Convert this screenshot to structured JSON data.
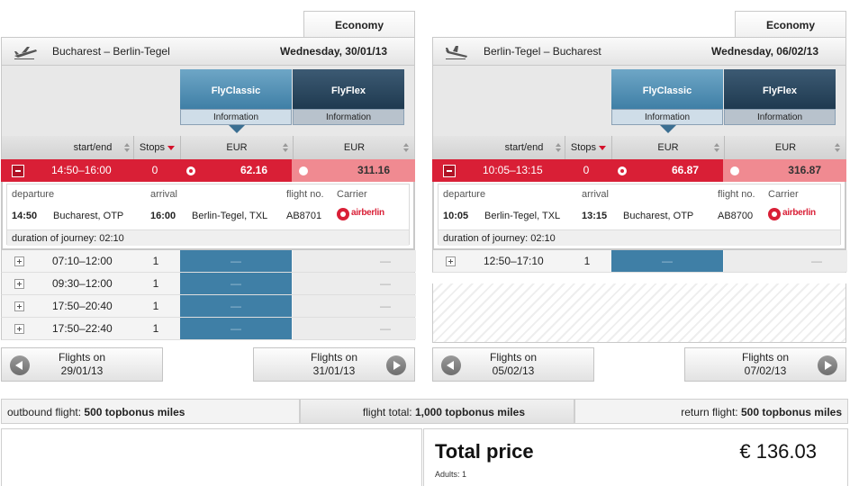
{
  "colors": {
    "accent_red": "#d91f36",
    "classic_blue": "#3f7fa6",
    "flex_navy": "#1f3a50",
    "flex_pink": "#f08a91"
  },
  "outbound": {
    "class_tab": "Economy",
    "route": "Bucharest – Berlin-Tegel",
    "date": "Wednesday, 30/01/13",
    "fares": {
      "classic": "FlyClassic",
      "flex": "FlyFlex",
      "info": "Information"
    },
    "columns": {
      "time": "start/end",
      "stops": "Stops",
      "currency": "EUR"
    },
    "selected": {
      "time": "14:50–16:00",
      "stops": "0",
      "price_classic": "62.16",
      "price_flex": "311.16"
    },
    "details": {
      "headers": {
        "departure": "departure",
        "arrival": "arrival",
        "flight_no": "flight no.",
        "carrier": "Carrier"
      },
      "dep_time": "14:50",
      "dep_airport": "Bucharest, OTP",
      "arr_time": "16:00",
      "arr_airport": "Berlin-Tegel, TXL",
      "flight_no": "AB8701",
      "carrier_logo": "airberlin",
      "duration": "duration of journey: 02:10"
    },
    "flights": [
      {
        "time": "07:10–12:00",
        "stops": "1",
        "classic": "—",
        "flex": "—"
      },
      {
        "time": "09:30–12:00",
        "stops": "1",
        "classic": "—",
        "flex": "—"
      },
      {
        "time": "17:50–20:40",
        "stops": "1",
        "classic": "—",
        "flex": "—"
      },
      {
        "time": "17:50–22:40",
        "stops": "1",
        "classic": "—",
        "flex": "—"
      }
    ],
    "prev": {
      "line1": "Flights on",
      "line2": "29/01/13"
    },
    "next": {
      "line1": "Flights on",
      "line2": "31/01/13"
    }
  },
  "return": {
    "class_tab": "Economy",
    "route": "Berlin-Tegel – Bucharest",
    "date": "Wednesday, 06/02/13",
    "fares": {
      "classic": "FlyClassic",
      "flex": "FlyFlex",
      "info": "Information"
    },
    "columns": {
      "time": "start/end",
      "stops": "Stops",
      "currency": "EUR"
    },
    "selected": {
      "time": "10:05–13:15",
      "stops": "0",
      "price_classic": "66.87",
      "price_flex": "316.87"
    },
    "details": {
      "headers": {
        "departure": "departure",
        "arrival": "arrival",
        "flight_no": "flight no.",
        "carrier": "Carrier"
      },
      "dep_time": "10:05",
      "dep_airport": "Berlin-Tegel, TXL",
      "arr_time": "13:15",
      "arr_airport": "Bucharest, OTP",
      "flight_no": "AB8700",
      "carrier_logo": "airberlin",
      "duration": "duration of journey: 02:10"
    },
    "flights": [
      {
        "time": "12:50–17:10",
        "stops": "1",
        "classic": "—",
        "flex": "—"
      }
    ],
    "prev": {
      "line1": "Flights on",
      "line2": "05/02/13"
    },
    "next": {
      "line1": "Flights on",
      "line2": "07/02/13"
    }
  },
  "miles": {
    "outbound_label": "outbound flight: ",
    "outbound_value": "500 topbonus miles",
    "total_label": "flight total: ",
    "total_value": "1,000 topbonus miles",
    "return_label": "return flight: ",
    "return_value": "500 topbonus miles"
  },
  "total": {
    "label": "Total price",
    "value": "€ 136.03",
    "adults": "Adults: 1"
  }
}
